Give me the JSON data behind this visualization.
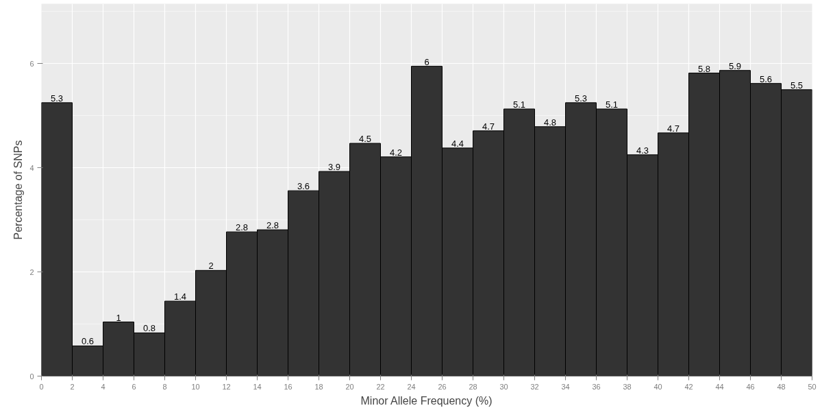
{
  "chart_data": {
    "type": "histogram",
    "xlabel": "Minor Allele Frequency (%)",
    "ylabel": "Percentage of SNPs",
    "bins": [
      0,
      2,
      4,
      6,
      8,
      10,
      12,
      14,
      16,
      18,
      20,
      22,
      24,
      26,
      28,
      30,
      32,
      34,
      36,
      38,
      40,
      42,
      44,
      46,
      48,
      50
    ],
    "values": [
      5.25,
      0.58,
      1.04,
      0.83,
      1.44,
      2.03,
      2.77,
      2.81,
      3.56,
      3.93,
      4.47,
      4.21,
      5.95,
      4.38,
      4.71,
      5.13,
      4.79,
      5.25,
      5.13,
      4.25,
      4.67,
      5.82,
      5.87,
      5.62,
      5.5
    ],
    "value_labels": [
      "5.3",
      "0.6",
      "1",
      "0.8",
      "1.4",
      "2",
      "2.8",
      "2.8",
      "3.6",
      "3.9",
      "4.5",
      "4.2",
      "6",
      "4.4",
      "4.7",
      "5.1",
      "4.8",
      "5.3",
      "5.1",
      "4.3",
      "4.7",
      "5.8",
      "5.9",
      "5.6",
      "5.5"
    ],
    "color": "#333333",
    "xlim": [
      0,
      50
    ],
    "ylim": [
      0,
      7.15
    ],
    "xticks": [
      0,
      2,
      4,
      6,
      8,
      10,
      12,
      14,
      16,
      18,
      20,
      22,
      24,
      26,
      28,
      30,
      32,
      34,
      36,
      38,
      40,
      42,
      44,
      46,
      48,
      50
    ],
    "yticks": [
      0,
      2,
      4,
      6
    ],
    "grid": true
  }
}
